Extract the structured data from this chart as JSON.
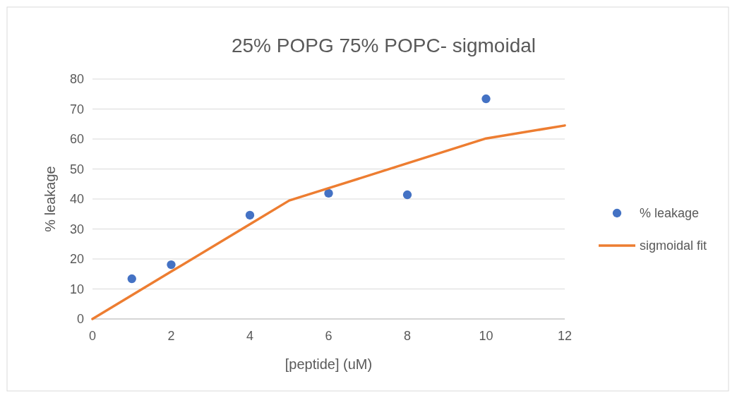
{
  "chart_data": {
    "type": "scatter",
    "title": "25% POPG 75% POPC- sigmoidal",
    "xlabel": "[peptide] (uM)",
    "ylabel": "% leakage",
    "xlim": [
      0,
      12
    ],
    "xticks": [
      0,
      2,
      4,
      6,
      8,
      10,
      12
    ],
    "ylim": [
      0,
      80
    ],
    "yticks": [
      0,
      10,
      20,
      30,
      40,
      50,
      60,
      70,
      80
    ],
    "grid": "y",
    "legend": "right",
    "marker": "circle",
    "series": [
      {
        "name": "% leakage",
        "color": "#4472c4",
        "x": [
          1,
          2,
          4,
          6,
          8,
          10
        ],
        "values": [
          13.4,
          18.1,
          34.6,
          41.9,
          41.4,
          73.4
        ]
      },
      {
        "name": "sigmoidal fit",
        "type": "line",
        "color": "#ed7d31",
        "marker": "none",
        "x": [
          0,
          2,
          4,
          5,
          6,
          8,
          10,
          12
        ],
        "values": [
          0,
          15.8,
          31.6,
          39.5,
          43.6,
          51.9,
          60.2,
          64.5
        ]
      }
    ]
  }
}
